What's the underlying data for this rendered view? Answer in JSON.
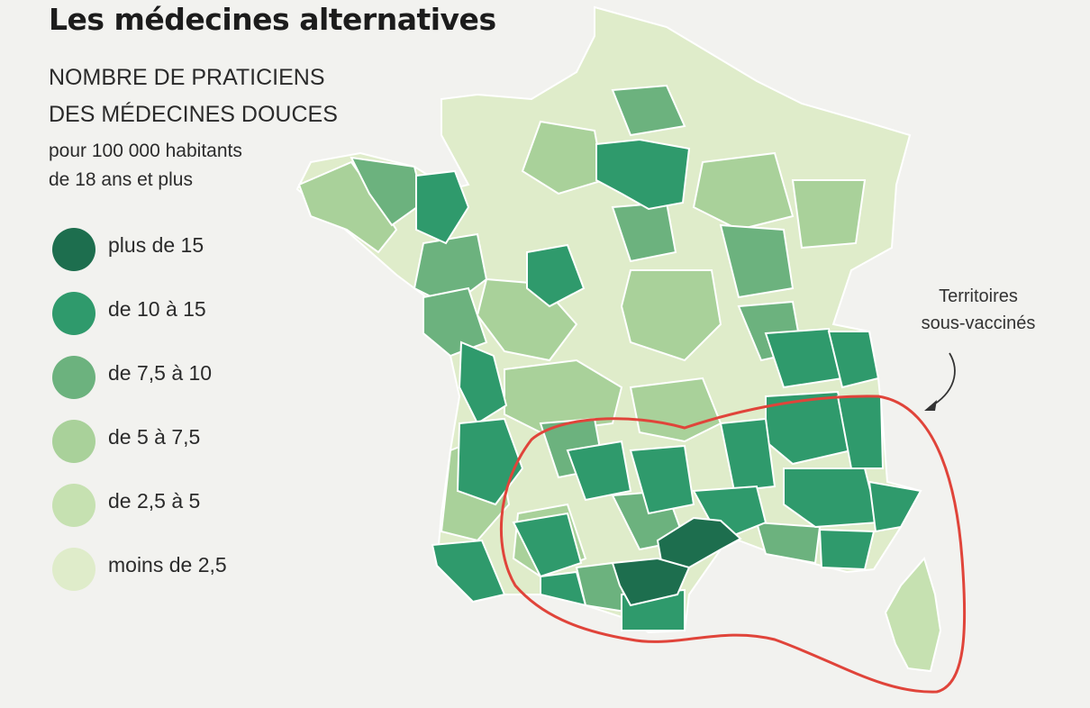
{
  "title": "Les médecines alternatives",
  "subtitle_line1": "NOMBRE DE PRATICIENS",
  "subtitle_line2": "DES MÉDECINES DOUCES",
  "unit_line1": "pour 100 000 habitants",
  "unit_line2": "de 18 ans et plus",
  "legend": [
    {
      "label": "plus de 15",
      "color": "#1d6e4e"
    },
    {
      "label": "de 10 à 15",
      "color": "#2f9a6c"
    },
    {
      "label": "de 7,5 à 10",
      "color": "#6cb27e"
    },
    {
      "label": "de 5 à 7,5",
      "color": "#a9d19a"
    },
    {
      "label": "de 2,5 à 5",
      "color": "#c6e1b1"
    },
    {
      "label": "moins de 2,5",
      "color": "#dfecca"
    }
  ],
  "annotation_line1": "Territoires",
  "annotation_line2": "sous-vaccinés",
  "highlight_color": "#e0443a"
}
